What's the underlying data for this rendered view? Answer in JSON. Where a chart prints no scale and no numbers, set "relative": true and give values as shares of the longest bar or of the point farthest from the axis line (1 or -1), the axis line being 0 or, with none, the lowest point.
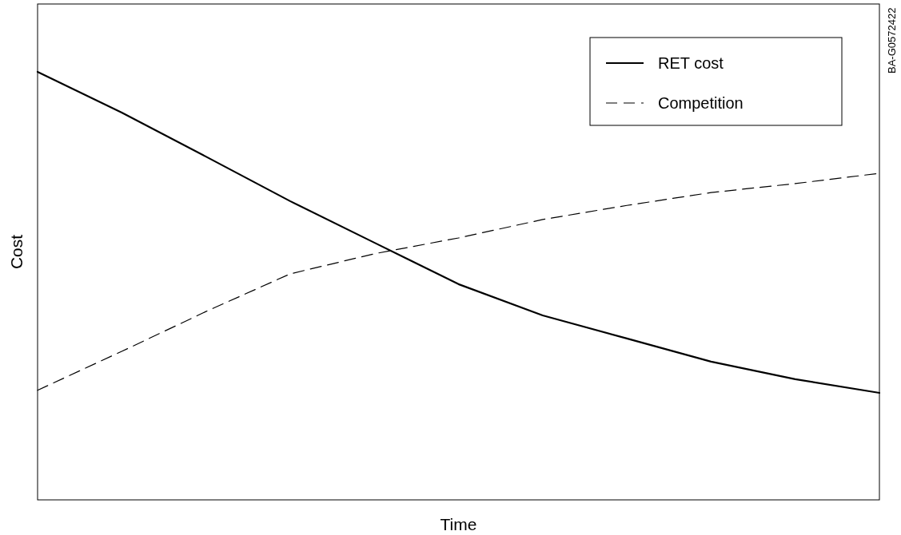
{
  "chart_data": {
    "type": "line",
    "xlabel": "Time",
    "ylabel": "Cost",
    "relative": true,
    "legend": "top right",
    "marker": "none",
    "categories": [
      null,
      null,
      null,
      null,
      null,
      null,
      null,
      null,
      null,
      null,
      null
    ],
    "series": [
      {
        "name": "RET cost",
        "color": "#000000",
        "line_style": "solid",
        "values": [
          1,
          0.905,
          0.802,
          0.698,
          0.601,
          0.504,
          0.431,
          0.377,
          0.323,
          0.282,
          0.25
        ]
      },
      {
        "name": "Competition",
        "color": "#000000",
        "line_style": "dashed",
        "values": [
          0.256,
          0.347,
          0.44,
          0.528,
          0.575,
          0.612,
          0.655,
          0.688,
          0.718,
          0.739,
          0.763
        ]
      }
    ],
    "annotations": [
      "BA-G0572422"
    ]
  }
}
